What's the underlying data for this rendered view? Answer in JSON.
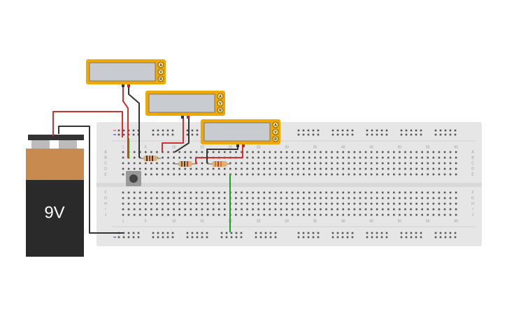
{
  "battery": {
    "label": "9V"
  },
  "multimeters": [
    {
      "buttons": [
        "A",
        "V",
        "R"
      ]
    },
    {
      "buttons": [
        "A",
        "V",
        "R"
      ]
    },
    {
      "buttons": [
        "A",
        "V",
        "R"
      ]
    }
  ],
  "breadboard": {
    "column_numbers": [
      "1",
      "5",
      "10",
      "15",
      "20",
      "25",
      "30",
      "35",
      "40",
      "45",
      "50",
      "55",
      "60"
    ],
    "row_letters_top": [
      "A",
      "B",
      "C",
      "D",
      "E"
    ],
    "row_letters_bottom": [
      "F",
      "G",
      "H",
      "I",
      "J"
    ]
  }
}
